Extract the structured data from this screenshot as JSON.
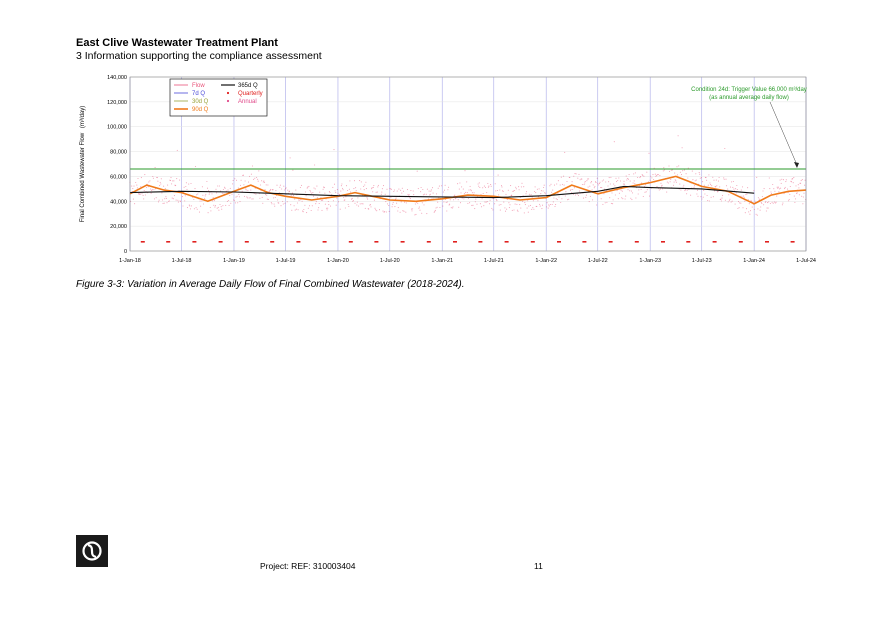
{
  "header": {
    "title": "East Clive Wastewater Treatment Plant",
    "subtitle": "3 Information supporting the compliance assessment"
  },
  "caption": "Figure 3-3: Variation in Average Daily Flow of Final Combined Wastewater (2018-2024).",
  "footer": {
    "project": "Project: REF: 310003404",
    "page_number": "11"
  },
  "colors": {
    "flow": "#e8547a",
    "q7": "#4a4ad8",
    "q30": "#9aa23a",
    "q90": "#f07a1a",
    "q365": "#111111",
    "quarterly": "#e0201e",
    "annual": "#e04a8a",
    "trigger": "#2a9a2a",
    "grid_v": "#a8a8e8"
  },
  "chart_data": {
    "type": "line",
    "title": "",
    "xlabel": "",
    "ylabel_main": "Final Combined Wastewater Flow",
    "ylabel_unit": "(m³/day)",
    "ylim": [
      0,
      140000
    ],
    "y_ticks": [
      "0",
      "20,000",
      "40,000",
      "60,000",
      "80,000",
      "100,000",
      "120,000",
      "140,000"
    ],
    "x_ticks": [
      "1-Jan-18",
      "1-Jul-18",
      "1-Jan-19",
      "1-Jul-19",
      "1-Jan-20",
      "1-Jul-20",
      "1-Jan-21",
      "1-Jul-21",
      "1-Jan-22",
      "1-Jul-22",
      "1-Jan-23",
      "1-Jul-23",
      "1-Jan-24",
      "1-Jul-24"
    ],
    "grid": true,
    "legend_position": "top-left",
    "legend": {
      "flow": "Flow",
      "q7": "7d Q",
      "q30": "30d Q",
      "q90": "90d Q",
      "q365": "365d Q",
      "quarterly": "Quarterly",
      "annual": "Annual"
    },
    "annotation": {
      "line1": "Condition 24d: Trigger Value 66,000 m³/day",
      "line2": "(as annual average daily flow)"
    },
    "trigger_value": 66000,
    "series": [
      {
        "name": "90d Q",
        "x": [
          "1-Jan-18",
          "1-Mar-18",
          "1-May-18",
          "1-Jul-18",
          "1-Oct-18",
          "1-Jan-19",
          "1-Mar-19",
          "1-May-19",
          "1-Jul-19",
          "1-Oct-19",
          "1-Jan-20",
          "1-Mar-20",
          "1-May-20",
          "1-Jul-20",
          "1-Oct-20",
          "1-Jan-21",
          "1-Apr-21",
          "1-Jul-21",
          "1-Oct-21",
          "1-Jan-22",
          "1-Apr-22",
          "1-Jul-22",
          "1-Oct-22",
          "1-Jan-23",
          "1-Apr-23",
          "1-Jul-23",
          "1-Oct-23",
          "1-Jan-24",
          "1-Mar-24",
          "1-May-24",
          "1-Jul-24"
        ],
        "values": [
          46000,
          53000,
          49000,
          47000,
          40000,
          48000,
          53000,
          47000,
          44000,
          41000,
          44000,
          47000,
          44000,
          41000,
          40000,
          42000,
          45000,
          44000,
          41000,
          43000,
          53000,
          46000,
          51000,
          55000,
          60000,
          52000,
          48000,
          38000,
          45000,
          48000,
          49000
        ]
      },
      {
        "name": "365d Q",
        "x": [
          "1-Jan-18",
          "1-Jul-18",
          "1-Jan-19",
          "1-Jul-19",
          "1-Jan-20",
          "1-Jul-20",
          "1-Jan-21",
          "1-Jul-21",
          "1-Jan-22",
          "1-Jul-22",
          "1-Oct-22",
          "1-Jan-23",
          "1-Jul-23",
          "1-Jan-24"
        ],
        "values": [
          47000,
          48000,
          47500,
          46000,
          44500,
          44000,
          43500,
          43000,
          44500,
          48000,
          52000,
          51000,
          50000,
          46500
        ]
      }
    ]
  }
}
